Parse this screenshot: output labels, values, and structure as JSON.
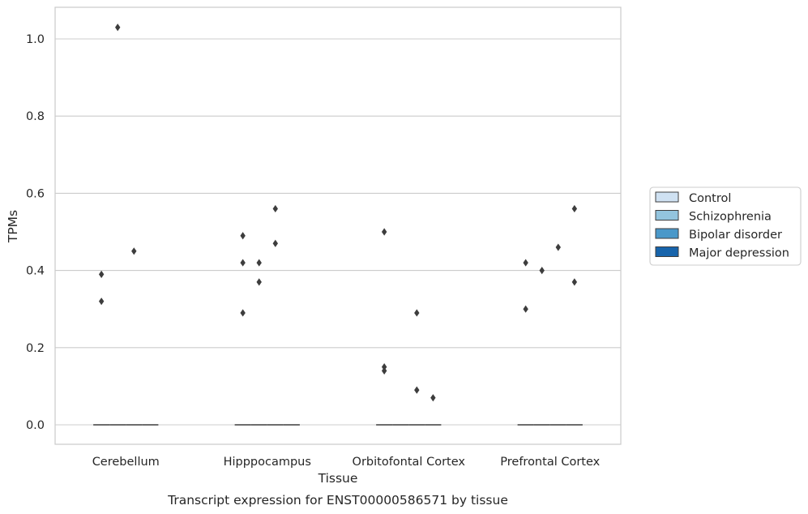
{
  "chart_data": {
    "type": "box",
    "caption": "Transcript expression for ENST00000586571 by tissue",
    "xlabel": "Tissue",
    "ylabel": "TPMs",
    "ylim": [
      -0.05,
      1.08
    ],
    "yticks": [
      0.0,
      0.2,
      0.4,
      0.6,
      0.8,
      1.0
    ],
    "ytick_labels": [
      "0.0",
      "0.2",
      "0.4",
      "0.6",
      "0.8",
      "1.0"
    ],
    "grid": "horizontal",
    "legend_placement": "right",
    "categories": [
      "Cerebellum",
      "Hipppocampus",
      "Orbitofontal Cortex",
      "Prefrontal Cortex"
    ],
    "series": [
      {
        "name": "Control",
        "color": "#cfe1f2",
        "median": [
          0,
          0,
          0,
          0
        ],
        "outliers": [
          [
            0.39,
            0.32
          ],
          [
            0.49,
            0.42,
            0.29
          ],
          [
            0.5,
            0.15,
            0.14
          ],
          [
            0.42,
            0.3
          ]
        ]
      },
      {
        "name": "Schizophrenia",
        "color": "#93c4de",
        "median": [
          0,
          0,
          0,
          0
        ],
        "outliers": [
          [
            1.03
          ],
          [
            0.42,
            0.37
          ],
          [],
          [
            0.4
          ]
        ]
      },
      {
        "name": "Bipolar disorder",
        "color": "#4a98c9",
        "median": [
          0,
          0,
          0,
          0
        ],
        "outliers": [
          [
            0.45
          ],
          [
            0.56,
            0.47
          ],
          [
            0.29,
            0.09
          ],
          [
            0.46
          ]
        ]
      },
      {
        "name": "Major depression",
        "color": "#1764ab",
        "median": [
          0,
          0,
          0,
          0
        ],
        "outliers": [
          [],
          [],
          [
            0.07
          ],
          [
            0.56,
            0.37
          ]
        ]
      }
    ]
  }
}
